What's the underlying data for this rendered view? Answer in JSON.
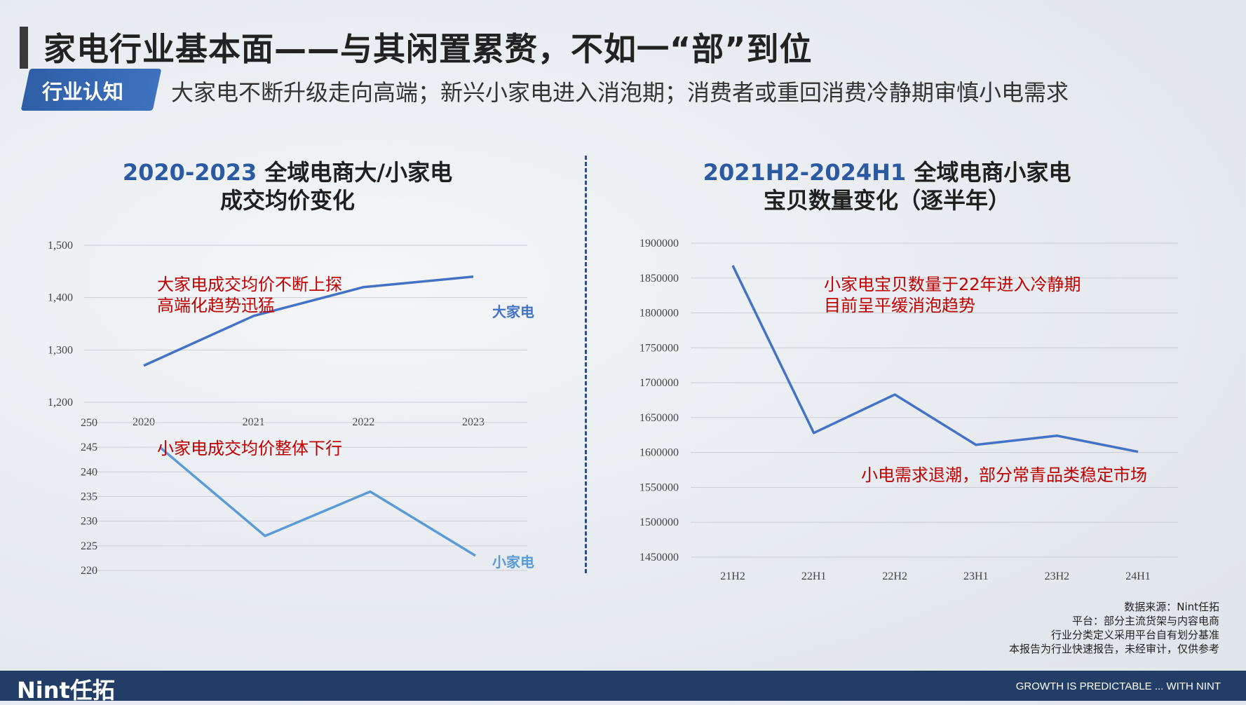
{
  "header": {
    "title": "家电行业基本面——与其闲置累赘，不如一“部”到位",
    "tag": "行业认知",
    "subtitle": "大家电不断升级走向高端；新兴小家电进入消泡期；消费者或重回消费冷静期审慎小电需求"
  },
  "colors": {
    "big_appliance": "#4472c4",
    "small_appliance": "#5b9bd5",
    "annotation_red": "#c00000",
    "title_blue": "#2b5aa3",
    "footer": "#223e67"
  },
  "chart_data": [
    {
      "type": "line",
      "title_highlight": "2020-2023",
      "title_rest": " 全域电商大/小家电",
      "title_line2": "成交均价变化",
      "panels": [
        {
          "categories": [
            "2020",
            "2021",
            "2022",
            "2023"
          ],
          "series": [
            {
              "name": "大家电",
              "values": [
                1270,
                1365,
                1420,
                1440
              ]
            }
          ],
          "ylim": [
            1200,
            1500
          ],
          "yticks": [
            "1,500",
            "1,400",
            "1,300",
            "1,200"
          ],
          "ytick_values": [
            1500,
            1400,
            1300,
            1200
          ],
          "annotation": [
            "大家电成交均价不断上探",
            "高端化趋势迅猛"
          ]
        },
        {
          "categories": [
            "2020",
            "2021",
            "2022",
            "2023"
          ],
          "series": [
            {
              "name": "小家电",
              "values": [
                245,
                227,
                236,
                223
              ]
            }
          ],
          "ylim": [
            220,
            250
          ],
          "yticks": [
            "250",
            "245",
            "240",
            "235",
            "230",
            "225",
            "220"
          ],
          "ytick_values": [
            250,
            245,
            240,
            235,
            230,
            225,
            220
          ],
          "annotation": [
            "小家电成交均价整体下行"
          ]
        }
      ],
      "grid": true
    },
    {
      "type": "line",
      "title_highlight": "2021H2-2024H1",
      "title_rest": " 全域电商小家电",
      "title_line2": "宝贝数量变化（逐半年）",
      "categories": [
        "21H2",
        "22H1",
        "22H2",
        "23H1",
        "23H2",
        "24H1"
      ],
      "series": [
        {
          "values": [
            1868000,
            1628000,
            1683000,
            1611000,
            1624000,
            1601000
          ]
        }
      ],
      "ylim": [
        1450000,
        1900000
      ],
      "yticks": [
        "1900000",
        "1850000",
        "1800000",
        "1750000",
        "1700000",
        "1650000",
        "1600000",
        "1550000",
        "1500000",
        "1450000"
      ],
      "ytick_values": [
        1900000,
        1850000,
        1800000,
        1750000,
        1700000,
        1650000,
        1600000,
        1550000,
        1500000,
        1450000
      ],
      "annotations": [
        [
          "小家电宝贝数量于22年进入冷静期",
          "目前呈平缓消泡趋势"
        ],
        [
          "小电需求退潮，部分常青品类稳定市场"
        ]
      ],
      "grid": true
    }
  ],
  "source": {
    "line1": "数据来源：Nint任拓",
    "line2": "平台：部分主流货架与内容电商",
    "line3": "行业分类定义采用平台自有划分基准",
    "line4": "本报告为行业快速报告，未经审计，仅供参考"
  },
  "footer": {
    "logo": "Nint任拓",
    "slogan": "GROWTH IS PREDICTABLE ... WITH NINT"
  }
}
